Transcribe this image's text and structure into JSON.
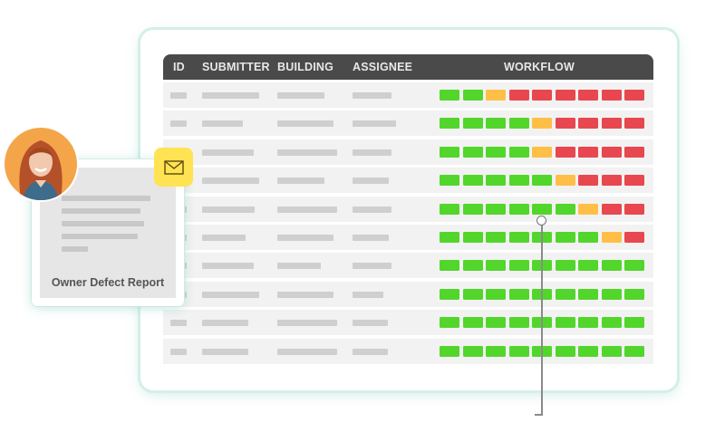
{
  "colors": {
    "green": "#52d62b",
    "yellow": "#ffbf47",
    "red": "#e8474f",
    "header_bg": "#4a4a4a",
    "row_bg": "#f2f2f2",
    "placeholder": "#cfcfcf",
    "mail_badge": "#ffe352",
    "avatar_bg": "#f4a54a",
    "panel_glow": "#d5efe9"
  },
  "table": {
    "headers": {
      "id": "ID",
      "submitter": "SUBMITTER",
      "building": "BUILDING",
      "assignee": "ASSIGNEE",
      "workflow": "WORKFLOW"
    },
    "rows": [
      {
        "id_w": 18,
        "submitter_w": 63,
        "building_w": 52,
        "assignee_w": 43,
        "workflow": [
          "green",
          "green",
          "yellow",
          "red",
          "red",
          "red",
          "red",
          "red",
          "red"
        ]
      },
      {
        "id_w": 18,
        "submitter_w": 45,
        "building_w": 62,
        "assignee_w": 48,
        "workflow": [
          "green",
          "green",
          "green",
          "green",
          "yellow",
          "red",
          "red",
          "red",
          "red"
        ]
      },
      {
        "id_w": 18,
        "submitter_w": 57,
        "building_w": 66,
        "assignee_w": 43,
        "workflow": [
          "green",
          "green",
          "green",
          "green",
          "yellow",
          "red",
          "red",
          "red",
          "red"
        ]
      },
      {
        "id_w": 18,
        "submitter_w": 63,
        "building_w": 52,
        "assignee_w": 40,
        "workflow": [
          "green",
          "green",
          "green",
          "green",
          "green",
          "yellow",
          "red",
          "red",
          "red"
        ]
      },
      {
        "id_w": 18,
        "submitter_w": 58,
        "building_w": 66,
        "assignee_w": 43,
        "workflow": [
          "green",
          "green",
          "green",
          "green",
          "green",
          "green",
          "yellow",
          "red",
          "red"
        ]
      },
      {
        "id_w": 18,
        "submitter_w": 48,
        "building_w": 62,
        "assignee_w": 40,
        "workflow": [
          "green",
          "green",
          "green",
          "green",
          "green",
          "green",
          "green",
          "yellow",
          "red"
        ]
      },
      {
        "id_w": 18,
        "submitter_w": 57,
        "building_w": 48,
        "assignee_w": 43,
        "workflow": [
          "green",
          "green",
          "green",
          "green",
          "green",
          "green",
          "green",
          "green",
          "green"
        ]
      },
      {
        "id_w": 18,
        "submitter_w": 63,
        "building_w": 62,
        "assignee_w": 34,
        "workflow": [
          "green",
          "green",
          "green",
          "green",
          "green",
          "green",
          "green",
          "green",
          "green"
        ]
      },
      {
        "id_w": 18,
        "submitter_w": 51,
        "building_w": 66,
        "assignee_w": 39,
        "workflow": [
          "green",
          "green",
          "green",
          "green",
          "green",
          "green",
          "green",
          "green",
          "green"
        ]
      },
      {
        "id_w": 18,
        "submitter_w": 51,
        "building_w": 66,
        "assignee_w": 39,
        "workflow": [
          "green",
          "green",
          "green",
          "green",
          "green",
          "green",
          "green",
          "green",
          "green"
        ]
      }
    ]
  },
  "report_card": {
    "title": "Owner Defect Report",
    "icon": "mail-icon",
    "avatar": "user-avatar"
  }
}
